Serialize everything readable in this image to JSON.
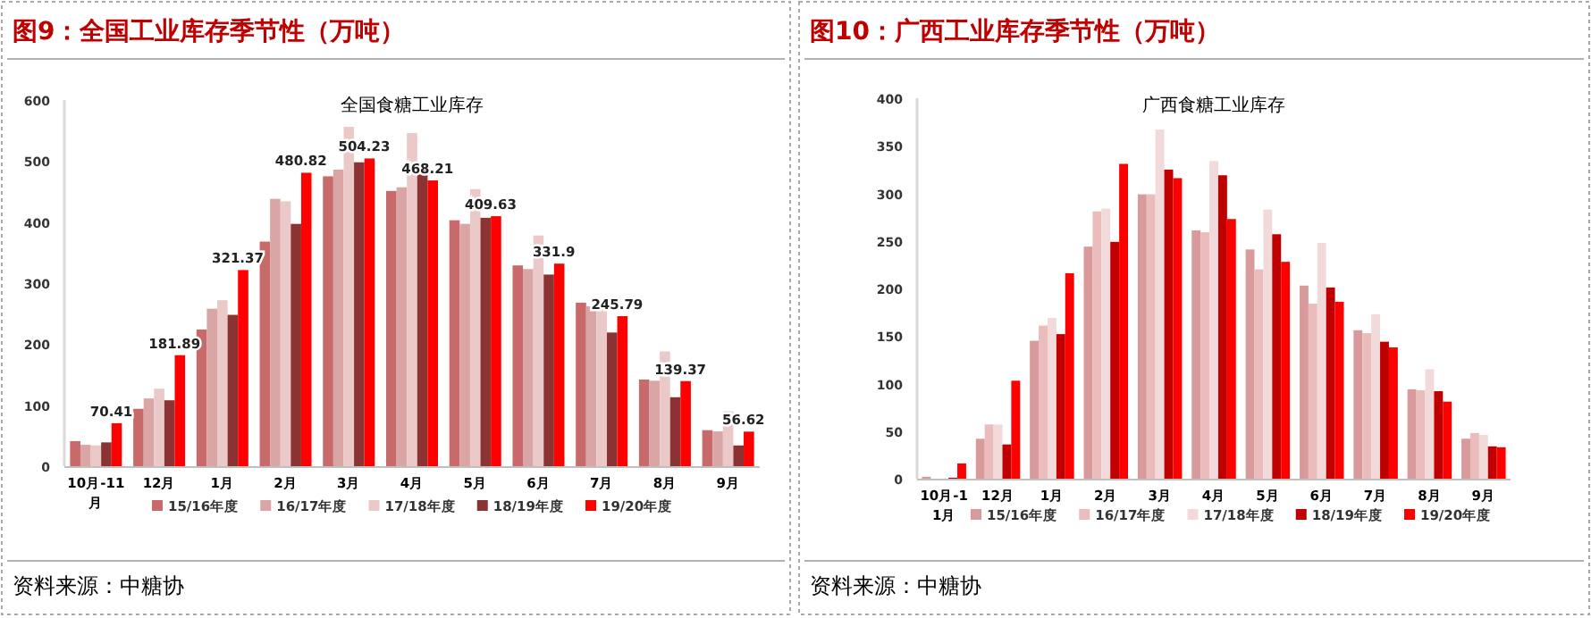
{
  "chart_data": [
    {
      "type": "bar",
      "title": "图9：全国工业库存季节性（万吨）",
      "subtitle": "全国食糖工业库存",
      "categories": [
        "10月-11月",
        "12月",
        "1月",
        "2月",
        "3月",
        "4月",
        "5月",
        "6月",
        "7月",
        "8月",
        "9月"
      ],
      "ylim": [
        0,
        600
      ],
      "yticks": [
        0,
        100,
        200,
        300,
        400,
        500,
        600
      ],
      "legend": "bottom",
      "annotations": [
        "资料来源：中糖协"
      ],
      "series": [
        {
          "name": "15/16年度",
          "color": "#c96a6a",
          "values": [
            41,
            94,
            224,
            368,
            475,
            451,
            403,
            329,
            268,
            142,
            59
          ]
        },
        {
          "name": "16/17年度",
          "color": "#d9a5a5",
          "values": [
            35,
            111,
            258,
            438,
            486,
            457,
            397,
            323,
            262,
            140,
            57
          ]
        },
        {
          "name": "17/18年度",
          "color": "#ecc9c9",
          "values": [
            34,
            127,
            272,
            434,
            556,
            546,
            454,
            378,
            266,
            188,
            90
          ]
        },
        {
          "name": "18/19年度",
          "color": "#8b3333",
          "values": [
            39,
            108,
            248,
            397,
            498,
            489,
            407,
            314,
            219,
            113,
            34
          ]
        },
        {
          "name": "19/20年度",
          "color": "#ff0000",
          "values": [
            70.41,
            181.89,
            321.37,
            480.82,
            504.23,
            468.21,
            409.63,
            331.9,
            245.79,
            139.37,
            56.62
          ],
          "value_labels": [
            "70.41",
            "181.89",
            "321.37",
            "480.82",
            "504.23",
            "468.21",
            "409.63",
            "331.9",
            "245.79",
            "139.37",
            "56.62"
          ]
        }
      ]
    },
    {
      "type": "bar",
      "title": "图10：广西工业库存季节性（万吨）",
      "subtitle": "广西食糖工业库存",
      "categories": [
        "10月-11月",
        "12月",
        "1月",
        "2月",
        "3月",
        "4月",
        "5月",
        "6月",
        "7月",
        "8月",
        "9月"
      ],
      "ylim": [
        0,
        400
      ],
      "yticks": [
        0,
        50,
        100,
        150,
        200,
        250,
        300,
        350,
        400
      ],
      "legend": "bottom",
      "annotations": [
        "资料来源：中糖协"
      ],
      "series": [
        {
          "name": "15/16年度",
          "color": "#d89a9a",
          "values": [
            2,
            42,
            145,
            244,
            299,
            261,
            241,
            203,
            156,
            94,
            42
          ]
        },
        {
          "name": "16/17年度",
          "color": "#ebbcbc",
          "values": [
            0,
            57,
            161,
            281,
            299,
            259,
            220,
            184,
            153,
            93,
            48
          ]
        },
        {
          "name": "17/18年度",
          "color": "#f3dada",
          "values": [
            0,
            57,
            169,
            284,
            367,
            334,
            283,
            248,
            173,
            115,
            46
          ]
        },
        {
          "name": "18/19年度",
          "color": "#c00000",
          "values": [
            1,
            36,
            152,
            249,
            325,
            319,
            257,
            201,
            144,
            92,
            34
          ]
        },
        {
          "name": "19/20年度",
          "color": "#ff0000",
          "values": [
            16,
            103,
            216,
            331,
            316,
            273,
            228,
            186,
            138,
            81,
            33
          ]
        }
      ]
    }
  ]
}
